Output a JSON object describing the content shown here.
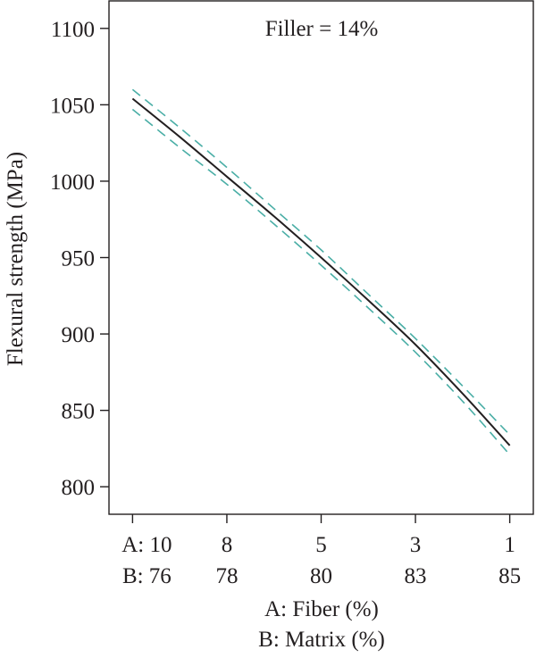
{
  "chart_data": {
    "type": "line",
    "annotation": "Filler = 14%",
    "ylabel": "Flexural strength (MPa)",
    "xlabel_lines": [
      "A: Fiber (%)",
      "B: Matrix (%)"
    ],
    "ylim": [
      782,
      1118
    ],
    "yticks": [
      800,
      850,
      900,
      950,
      1000,
      1050,
      1100
    ],
    "xlim": [
      -0.25,
      4.25
    ],
    "xticks": [
      0,
      1,
      2,
      3,
      4
    ],
    "xtick_labels_a": [
      "A: 10",
      "8",
      "5",
      "3",
      "1"
    ],
    "xtick_labels_b": [
      "B: 76",
      "78",
      "80",
      "83",
      "85"
    ],
    "series": [
      {
        "role": "prediction",
        "color": "#231f20",
        "dash": "solid",
        "x": [
          0,
          0.5,
          1,
          1.5,
          2,
          2.5,
          3,
          3.5,
          4
        ],
        "y": [
          1054,
          1029,
          1003,
          977,
          950,
          922,
          893,
          861,
          827
        ]
      },
      {
        "role": "upper-ci",
        "color": "#4aaea6",
        "dash": "dashed",
        "x": [
          0,
          0.5,
          1,
          1.5,
          2,
          2.5,
          3,
          3.5,
          4
        ],
        "y": [
          1060,
          1035,
          1009,
          982,
          955,
          926,
          897,
          866,
          834
        ]
      },
      {
        "role": "lower-ci",
        "color": "#4aaea6",
        "dash": "dashed",
        "x": [
          0,
          0.5,
          1,
          1.5,
          2,
          2.5,
          3,
          3.5,
          4
        ],
        "y": [
          1047,
          1022,
          998,
          972,
          945,
          917,
          888,
          856,
          821
        ]
      }
    ]
  }
}
